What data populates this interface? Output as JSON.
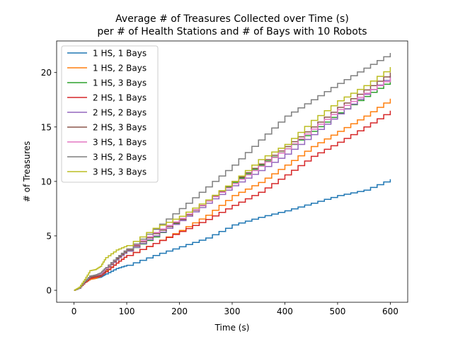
{
  "chart_data": {
    "type": "line",
    "title_line1": "Average # of Treasures Collected over Time (s)",
    "title_line2": "per # of Health Stations and # of Bays with 10 Robots",
    "xlabel": "Time (s)",
    "ylabel": "# of Treasures",
    "xlim": [
      -33,
      633
    ],
    "ylim": [
      -1.1,
      22.9
    ],
    "xticks": [
      0,
      100,
      200,
      300,
      400,
      500,
      600
    ],
    "yticks": [
      0,
      5,
      10,
      15,
      20
    ],
    "grid": false,
    "legend_position": "upper-left",
    "series": [
      {
        "name": "1 HS, 1 Bays",
        "color": "#1f77b4",
        "x": [
          0,
          10,
          20,
          30,
          40,
          50,
          60,
          80,
          100,
          150,
          200,
          250,
          300,
          350,
          400,
          450,
          500,
          550,
          600
        ],
        "y": [
          0,
          0.2,
          0.7,
          1.0,
          1.1,
          1.2,
          1.5,
          2.0,
          2.3,
          3.2,
          4.0,
          4.8,
          6.0,
          6.7,
          7.3,
          8.0,
          8.7,
          9.2,
          10.2
        ]
      },
      {
        "name": "1 HS, 2 Bays",
        "color": "#ff7f0e",
        "x": [
          0,
          10,
          20,
          30,
          40,
          50,
          60,
          80,
          100,
          150,
          200,
          250,
          300,
          350,
          400,
          450,
          500,
          550,
          600
        ],
        "y": [
          0,
          0.2,
          0.7,
          1.0,
          1.1,
          1.3,
          1.8,
          2.5,
          3.2,
          4.3,
          5.5,
          6.9,
          8.7,
          9.9,
          11.5,
          13.2,
          14.6,
          16.0,
          17.6
        ]
      },
      {
        "name": "1 HS, 3 Bays",
        "color": "#2ca02c",
        "x": [
          0,
          10,
          20,
          30,
          40,
          50,
          60,
          80,
          100,
          150,
          200,
          250,
          300,
          350,
          400,
          450,
          500,
          550,
          600
        ],
        "y": [
          0,
          0.2,
          0.8,
          1.3,
          1.4,
          1.5,
          1.9,
          2.8,
          3.6,
          4.9,
          6.5,
          8.2,
          9.9,
          11.5,
          13.0,
          14.6,
          16.3,
          17.8,
          19.3
        ]
      },
      {
        "name": "2 HS, 1 Bays",
        "color": "#d62728",
        "x": [
          0,
          10,
          20,
          30,
          40,
          50,
          60,
          80,
          100,
          150,
          200,
          250,
          300,
          350,
          400,
          450,
          500,
          550,
          600
        ],
        "y": [
          0,
          0.2,
          0.7,
          1.1,
          1.2,
          1.3,
          1.7,
          2.5,
          3.2,
          4.3,
          5.4,
          6.5,
          7.8,
          9.0,
          10.6,
          12.3,
          13.6,
          15.0,
          16.5
        ]
      },
      {
        "name": "2 HS, 2 Bays",
        "color": "#9467bd",
        "x": [
          0,
          10,
          20,
          30,
          40,
          50,
          60,
          80,
          100,
          150,
          200,
          250,
          300,
          350,
          400,
          450,
          500,
          550,
          600
        ],
        "y": [
          0,
          0.2,
          0.8,
          1.2,
          1.3,
          1.4,
          1.9,
          2.8,
          3.6,
          5.0,
          6.4,
          8.0,
          9.6,
          11.0,
          12.5,
          14.3,
          16.2,
          18.0,
          19.7
        ]
      },
      {
        "name": "2 HS, 3 Bays",
        "color": "#8c564b",
        "x": [
          0,
          10,
          20,
          30,
          40,
          50,
          60,
          80,
          100,
          150,
          200,
          250,
          300,
          350,
          400,
          450,
          500,
          550,
          600
        ],
        "y": [
          0,
          0.2,
          0.8,
          1.2,
          1.3,
          1.4,
          1.9,
          2.9,
          3.7,
          5.2,
          6.5,
          8.2,
          10.0,
          11.6,
          13.2,
          15.0,
          16.8,
          18.4,
          20.0
        ]
      },
      {
        "name": "3 HS, 1 Bays",
        "color": "#e377c2",
        "x": [
          0,
          10,
          20,
          30,
          40,
          50,
          60,
          80,
          100,
          150,
          200,
          250,
          300,
          350,
          400,
          450,
          500,
          550,
          600
        ],
        "y": [
          0,
          0.2,
          0.8,
          1.3,
          1.4,
          1.5,
          2.0,
          3.0,
          3.8,
          5.3,
          6.6,
          8.2,
          9.8,
          11.4,
          13.0,
          14.8,
          16.6,
          18.1,
          19.5
        ]
      },
      {
        "name": "3 HS, 2 Bays",
        "color": "#7f7f7f",
        "x": [
          0,
          10,
          20,
          30,
          40,
          50,
          60,
          80,
          100,
          150,
          200,
          250,
          300,
          350,
          400,
          450,
          500,
          550,
          600
        ],
        "y": [
          0,
          0.2,
          0.8,
          1.3,
          1.4,
          1.6,
          2.1,
          3.0,
          3.8,
          5.6,
          7.5,
          9.5,
          11.5,
          13.8,
          16.0,
          17.5,
          19.0,
          20.4,
          21.8
        ]
      },
      {
        "name": "3 HS, 3 Bays",
        "color": "#bcbd22",
        "x": [
          0,
          10,
          20,
          30,
          40,
          50,
          60,
          80,
          100,
          150,
          200,
          250,
          300,
          350,
          400,
          450,
          500,
          550,
          600
        ],
        "y": [
          0,
          0.3,
          1.0,
          1.8,
          1.9,
          2.2,
          3.0,
          3.7,
          4.1,
          5.7,
          6.8,
          8.3,
          10.0,
          12.0,
          13.4,
          15.6,
          17.4,
          18.8,
          20.5
        ]
      }
    ]
  }
}
